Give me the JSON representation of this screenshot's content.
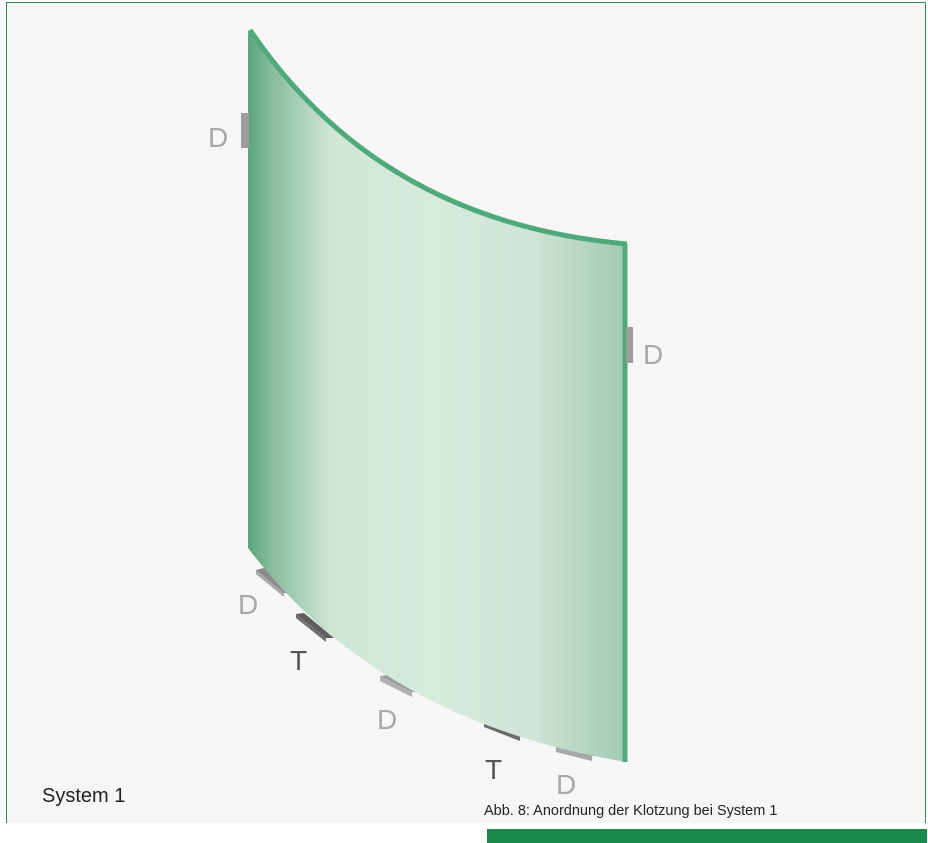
{
  "labels": {
    "left_top": "D",
    "right_mid": "D",
    "bottom_1": "D",
    "bottom_2": "T",
    "bottom_3": "D",
    "bottom_4": "T",
    "bottom_5": "D"
  },
  "system_label": "System 1",
  "caption": "Abb. 8:  Anordnung der Klotzung bei System 1",
  "colors": {
    "glass_edge": "#4fa97b",
    "block_light": "#a4a4a4",
    "block_dark": "#6f6f6f",
    "label_gray": "#a8a8a8",
    "label_dark": "#555555",
    "accent_bar": "#1b8a4c"
  }
}
